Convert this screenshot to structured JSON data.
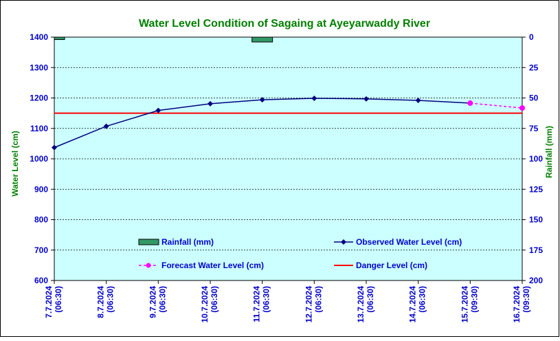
{
  "chart_data": {
    "type": "line",
    "title": "Water Level Condition of Sagaing at Ayeyarwaddy River",
    "ylabel": "Water Level (cm)",
    "y2label": "Rainfall (mm)",
    "ylim": [
      600,
      1400
    ],
    "y2lim": [
      0,
      200
    ],
    "y2_inverted": true,
    "yticks": [
      "1400",
      "1300",
      "1200",
      "1100",
      "1000",
      "900",
      "800",
      "700",
      "600"
    ],
    "y2ticks": [
      "0",
      "25",
      "50",
      "75",
      "100",
      "125",
      "150",
      "175",
      "200"
    ],
    "categories": [
      {
        "date": "7.7.2024",
        "time": "(06:30)"
      },
      {
        "date": "8.7.2024",
        "time": "(06:30)"
      },
      {
        "date": "9.7.2024",
        "time": "(06:30)"
      },
      {
        "date": "10.7.2024",
        "time": "(06:30)"
      },
      {
        "date": "11.7.2024",
        "time": "(06:30)"
      },
      {
        "date": "12.7.2024",
        "time": "(06:30)"
      },
      {
        "date": "13.7.2024",
        "time": "(06:30)"
      },
      {
        "date": "14.7.2024",
        "time": "(06:30)"
      },
      {
        "date": "15.7.2024",
        "time": "(09:30)"
      },
      {
        "date": "16.7.2024",
        "time": "(09:30)"
      }
    ],
    "series": [
      {
        "name": "Rainfall (mm)",
        "type": "bar",
        "axis": "right",
        "color": "#339966",
        "values": [
          2,
          0,
          0,
          0,
          4,
          0,
          0,
          0,
          null,
          null
        ]
      },
      {
        "name": "Observed Water Level (cm)",
        "type": "line",
        "axis": "left",
        "color": "#000080",
        "values": [
          1037,
          1107,
          1159,
          1181,
          1194,
          1199,
          1197,
          1192,
          1183,
          null
        ]
      },
      {
        "name": "Forecast Water Level (cm)",
        "type": "line",
        "axis": "left",
        "color": "#ff00ff",
        "dashed": true,
        "values": [
          null,
          null,
          null,
          null,
          null,
          null,
          null,
          null,
          1183,
          1167
        ]
      },
      {
        "name": "Danger Level (cm)",
        "type": "line",
        "axis": "left",
        "color": "#ff0000",
        "values": [
          1150,
          1150,
          1150,
          1150,
          1150,
          1150,
          1150,
          1150,
          1150,
          1150
        ]
      }
    ],
    "legend_position": "inside-bottom",
    "grid": true,
    "colors": {
      "plot_background": "#ccffff",
      "title": "#008000",
      "axis_text": "#0000cc",
      "y2label": "#008000"
    }
  }
}
